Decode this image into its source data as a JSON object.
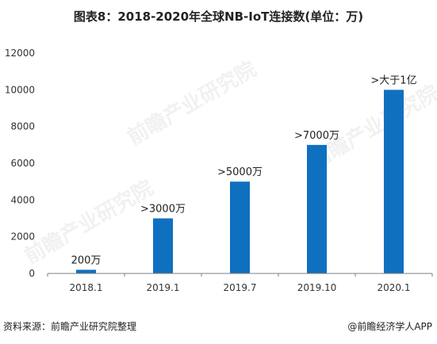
{
  "title": "图表8：2018-2020年全球NB-IoT连接数(单位：万)",
  "source_left": "资料来源：前瞻产业研究院整理",
  "source_right": "@前瞻经济学人APP",
  "watermark_text": "前瞻产业研究院",
  "colors": {
    "bar": "#1070C0",
    "axis": "#7f7f7f",
    "text": "#222222"
  },
  "chart_data": {
    "type": "bar",
    "title": "图表8：2018-2020年全球NB-IoT连接数(单位：万)",
    "xlabel": "",
    "ylabel": "",
    "categories": [
      "2018.1",
      "2019.1",
      "2019.7",
      "2019.10",
      "2020.1"
    ],
    "values": [
      200,
      3000,
      5000,
      7000,
      10000
    ],
    "data_labels": [
      "200万",
      ">3000万",
      ">5000万",
      ">7000万",
      ">大于1亿"
    ],
    "ylim": [
      0,
      12000
    ],
    "yticks": [
      0,
      2000,
      4000,
      6000,
      8000,
      10000,
      12000
    ],
    "grid": false,
    "legend": "none"
  }
}
